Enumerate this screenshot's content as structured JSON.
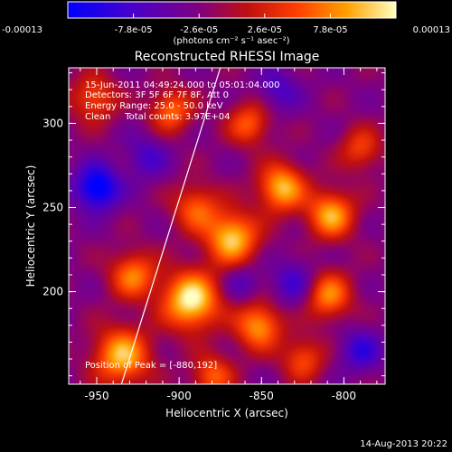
{
  "chart_data": {
    "type": "heatmap",
    "title": "Reconstructed RHESSI Image",
    "xlabel": "Heliocentric X (arcsec)",
    "ylabel": "Heliocentric Y (arcsec)",
    "xlim": [
      -967,
      -775
    ],
    "ylim": [
      145,
      333
    ],
    "x_ticks": [
      -950,
      -900,
      -850,
      -800
    ],
    "y_ticks": [
      200,
      250,
      300
    ],
    "x_tick_labels": [
      "-950",
      "-900",
      "-850",
      "-800"
    ],
    "y_tick_labels": [
      "200",
      "250",
      "300"
    ],
    "colorbar": {
      "min": -0.00013,
      "max": 0.00013,
      "ticks": [
        -0.00013,
        -7.8e-05,
        -2.6e-05,
        2.6e-05,
        7.8e-05,
        0.00013
      ],
      "tick_labels": [
        "-0.00013",
        "-7.8e-05",
        "-2.6e-05",
        "2.6e-05",
        "7.8e-05",
        "0.00013"
      ],
      "unit_label": "(photons cm⁻² s⁻¹ asec⁻²)"
    },
    "annotations": [
      "15-Jun-2011 04:49:24.000 to 05:01:04.000",
      "Detectors: 3F 5F 6F 7F 8F, Att 0",
      "Energy Range: 25.0 - 50.0 keV",
      "Clean     Total counts: 3.97E+04",
      "Position of Peak = [-880,192]"
    ],
    "peak": {
      "x": -880,
      "y": 192
    },
    "limb_line": [
      [
        -935,
        145
      ],
      [
        -875,
        333
      ]
    ],
    "blobs": [
      {
        "x": -893,
        "y": 195,
        "amp": 1.1,
        "sigma": 12
      },
      {
        "x": -868,
        "y": 232,
        "amp": 0.95,
        "sigma": 11
      },
      {
        "x": -838,
        "y": 262,
        "amp": 0.9,
        "sigma": 10
      },
      {
        "x": -808,
        "y": 246,
        "amp": 0.85,
        "sigma": 10
      },
      {
        "x": -935,
        "y": 162,
        "amp": 0.9,
        "sigma": 12
      },
      {
        "x": -928,
        "y": 210,
        "amp": 0.7,
        "sigma": 10
      },
      {
        "x": -852,
        "y": 180,
        "amp": 0.8,
        "sigma": 10
      },
      {
        "x": -810,
        "y": 198,
        "amp": 0.75,
        "sigma": 10
      },
      {
        "x": -905,
        "y": 308,
        "amp": 0.65,
        "sigma": 9
      },
      {
        "x": -858,
        "y": 300,
        "amp": 0.6,
        "sigma": 9
      },
      {
        "x": -890,
        "y": 250,
        "amp": 0.6,
        "sigma": 10
      },
      {
        "x": -825,
        "y": 160,
        "amp": 0.55,
        "sigma": 9
      },
      {
        "x": -880,
        "y": 150,
        "amp": 0.6,
        "sigma": 9
      },
      {
        "x": -952,
        "y": 315,
        "amp": 0.55,
        "sigma": 10
      },
      {
        "x": -790,
        "y": 285,
        "amp": 0.5,
        "sigma": 9
      },
      {
        "x": -950,
        "y": 262,
        "amp": -0.85,
        "sigma": 9
      },
      {
        "x": -830,
        "y": 205,
        "amp": -0.4,
        "sigma": 10
      },
      {
        "x": -790,
        "y": 165,
        "amp": -0.45,
        "sigma": 9
      },
      {
        "x": -920,
        "y": 280,
        "amp": -0.35,
        "sigma": 9
      },
      {
        "x": -862,
        "y": 205,
        "amp": -0.3,
        "sigma": 8
      },
      {
        "x": -840,
        "y": 320,
        "amp": -0.35,
        "sigma": 9
      }
    ]
  },
  "footer": {
    "date_stamp": "14-Aug-2013 20:22"
  }
}
